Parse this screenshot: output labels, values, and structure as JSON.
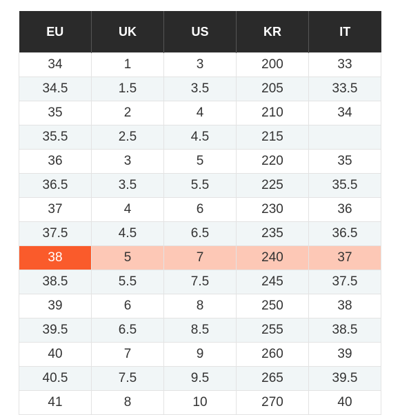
{
  "size_table": {
    "columns": [
      "EU",
      "UK",
      "US",
      "KR",
      "IT"
    ],
    "rows": [
      [
        "34",
        "1",
        "3",
        "200",
        "33"
      ],
      [
        "34.5",
        "1.5",
        "3.5",
        "205",
        "33.5"
      ],
      [
        "35",
        "2",
        "4",
        "210",
        "34"
      ],
      [
        "35.5",
        "2.5",
        "4.5",
        "215",
        ""
      ],
      [
        "36",
        "3",
        "5",
        "220",
        "35"
      ],
      [
        "36.5",
        "3.5",
        "5.5",
        "225",
        "35.5"
      ],
      [
        "37",
        "4",
        "6",
        "230",
        "36"
      ],
      [
        "37.5",
        "4.5",
        "6.5",
        "235",
        "36.5"
      ],
      [
        "38",
        "5",
        "7",
        "240",
        "37"
      ],
      [
        "38.5",
        "5.5",
        "7.5",
        "245",
        "37.5"
      ],
      [
        "39",
        "6",
        "8",
        "250",
        "38"
      ],
      [
        "39.5",
        "6.5",
        "8.5",
        "255",
        "38.5"
      ],
      [
        "40",
        "7",
        "9",
        "260",
        "39"
      ],
      [
        "40.5",
        "7.5",
        "9.5",
        "265",
        "39.5"
      ],
      [
        "41",
        "8",
        "10",
        "270",
        "40"
      ]
    ],
    "highlighted_row_index": 8,
    "selected_size": "38",
    "colors": {
      "header_bg": "#2a2a2a",
      "selected_cell": "#fa5b2b",
      "highlighted_row": "#fdc8b6",
      "stripe": "#f1f6f7"
    }
  }
}
